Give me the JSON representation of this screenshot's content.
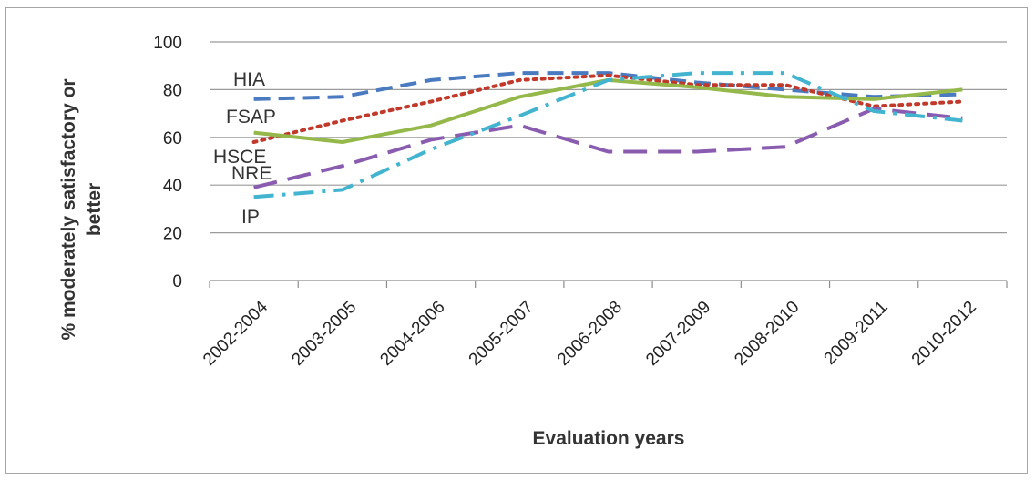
{
  "chart_data": {
    "type": "line",
    "title": "",
    "xlabel": "Evaluation years",
    "ylabel": "% moderately satisfactory or better",
    "ylim": [
      0,
      100
    ],
    "yticks": [
      0,
      20,
      40,
      60,
      80,
      100
    ],
    "grid": true,
    "legend": "none",
    "categories": [
      "2002-2004",
      "2003-2005",
      "2004-2006",
      "2005-2007",
      "2006-2008",
      "2007-2009",
      "2008-2010",
      "2009-2011",
      "2010-2012"
    ],
    "series": [
      {
        "name": "HIA",
        "color": "#4a7bc0",
        "dash": "long-dash",
        "values": [
          76,
          77,
          84,
          87,
          87,
          83,
          80,
          77,
          78
        ]
      },
      {
        "name": "FSAP",
        "color": "#c0392b",
        "dash": "dotted",
        "values": [
          58,
          67,
          75,
          84,
          86,
          82,
          82,
          73,
          75
        ]
      },
      {
        "name": "HSCE",
        "color": "#94b84a",
        "dash": "solid",
        "values": [
          62,
          58,
          65,
          77,
          84,
          81,
          77,
          76,
          80
        ]
      },
      {
        "name": "NRE",
        "color": "#8a5cb0",
        "dash": "dash",
        "values": [
          39,
          48,
          59,
          65,
          54,
          54,
          56,
          72,
          68
        ]
      },
      {
        "name": "IP",
        "color": "#43b4cf",
        "dash": "dash-dot",
        "values": [
          35,
          38,
          55,
          69,
          84,
          87,
          87,
          71,
          67
        ]
      }
    ]
  }
}
